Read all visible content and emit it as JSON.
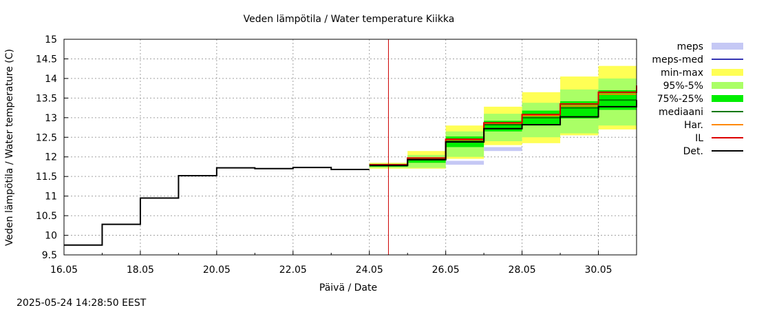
{
  "chart_data": {
    "type": "area",
    "title": "Veden lämpötila / Water temperature Kiikka",
    "xlabel": "Päivä / Date",
    "ylabel": "Veden lämpötila / Water temperature (C)",
    "timestamp": "2025-05-24 14:28:50 EEST",
    "xlim": [
      "2025-05-16",
      "2025-05-31"
    ],
    "ylim": [
      9.5,
      15
    ],
    "grid": true,
    "legend_position": "right",
    "x_ticks": [
      "16.05",
      "18.05",
      "20.05",
      "22.05",
      "24.05",
      "26.05",
      "28.05",
      "30.05"
    ],
    "y_ticks": [
      "9.5",
      "10",
      "10.5",
      "11",
      "11.5",
      "12",
      "12.5",
      "13",
      "13.5",
      "14",
      "14.5",
      "15"
    ],
    "forecast_start": "2025-05-24 12:00",
    "legend": [
      {
        "label": "meps",
        "color": "#c5c8f5",
        "style": "box"
      },
      {
        "label": "meps-med",
        "color": "#3333b3",
        "style": "line"
      },
      {
        "label": "min-max",
        "color": "#ffff55",
        "style": "box"
      },
      {
        "label": "95%-5%",
        "color": "#aaff66",
        "style": "box"
      },
      {
        "label": "75%-25%",
        "color": "#00ee00",
        "style": "box"
      },
      {
        "label": "mediaani",
        "color": "#007700",
        "style": "line"
      },
      {
        "label": "Har.",
        "color": "#ff8800",
        "style": "line"
      },
      {
        "label": "IL",
        "color": "#dd0000",
        "style": "line"
      },
      {
        "label": "Det.",
        "color": "#000000",
        "style": "line"
      }
    ],
    "observed": {
      "name": "Det.",
      "days": [
        "16.05",
        "17.05",
        "18.05",
        "19.05",
        "20.05",
        "21.05",
        "22.05",
        "23.05"
      ],
      "values": [
        9.75,
        10.28,
        10.95,
        11.52,
        11.72,
        11.7,
        11.73,
        11.68
      ]
    },
    "forecast_days": [
      "24.05",
      "25.05",
      "26.05",
      "27.05",
      "28.05",
      "29.05",
      "30.05"
    ],
    "series": [
      {
        "name": "meps",
        "low": [
          11.72,
          11.7,
          11.8,
          12.15,
          null,
          null,
          null
        ],
        "high": [
          11.85,
          11.95,
          11.9,
          12.25,
          null,
          null,
          null
        ]
      },
      {
        "name": "min-max",
        "low": [
          11.7,
          11.7,
          11.95,
          12.3,
          12.35,
          12.55,
          12.7
        ],
        "high": [
          11.85,
          12.15,
          12.8,
          13.28,
          13.65,
          14.05,
          14.32
        ]
      },
      {
        "name": "95%-5%",
        "low": [
          11.72,
          11.72,
          12.0,
          12.4,
          12.5,
          12.6,
          12.8
        ],
        "high": [
          11.83,
          12.05,
          12.65,
          13.1,
          13.38,
          13.72,
          14.0
        ]
      },
      {
        "name": "75%-25%",
        "low": [
          11.75,
          11.85,
          12.25,
          12.65,
          12.8,
          12.98,
          13.2
        ],
        "high": [
          11.82,
          11.98,
          12.52,
          12.92,
          13.18,
          13.42,
          13.7
        ]
      },
      {
        "name": "mediaani",
        "values": [
          11.78,
          11.93,
          12.4,
          12.82,
          13.0,
          13.25,
          13.45
        ]
      },
      {
        "name": "Har.",
        "values": [
          11.8,
          11.97,
          12.42,
          12.85,
          13.05,
          13.3,
          13.6
        ]
      },
      {
        "name": "IL",
        "values": [
          11.8,
          11.97,
          12.45,
          12.87,
          13.08,
          13.35,
          13.65
        ]
      },
      {
        "name": "Det.",
        "values": [
          11.78,
          11.93,
          12.38,
          12.72,
          12.82,
          13.02,
          13.28
        ]
      }
    ],
    "end_values": {
      "IL": 13.82,
      "Det.": 13.45
    }
  }
}
